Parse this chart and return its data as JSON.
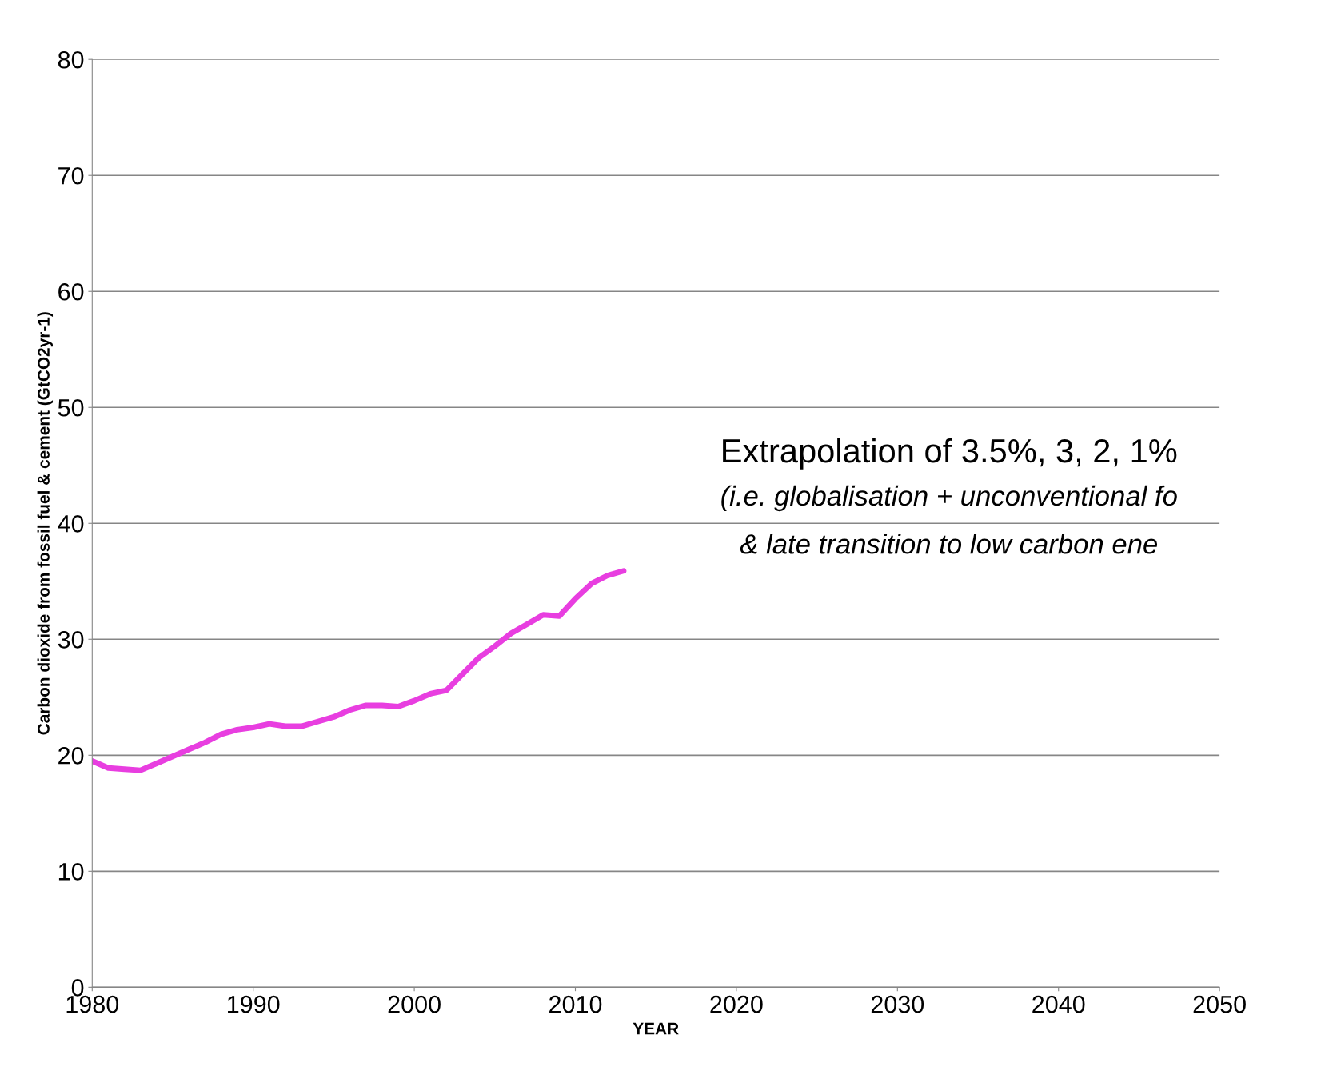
{
  "chart_data": {
    "type": "line",
    "xlabel": "YEAR",
    "ylabel": "Carbon dioxide from fossil fuel & cement (GtCO2yr-1)",
    "x": [
      1980,
      1981,
      1982,
      1983,
      1984,
      1985,
      1986,
      1987,
      1988,
      1989,
      1990,
      1991,
      1992,
      1993,
      1994,
      1995,
      1996,
      1997,
      1998,
      1999,
      2000,
      2001,
      2002,
      2003,
      2004,
      2005,
      2006,
      2007,
      2008,
      2009,
      2010,
      2011,
      2012,
      2013
    ],
    "series": [
      {
        "color": "#e83ee0",
        "values": [
          19.5,
          18.9,
          18.8,
          18.7,
          19.3,
          19.9,
          20.5,
          21.1,
          21.8,
          22.2,
          22.4,
          22.7,
          22.5,
          22.5,
          22.9,
          23.3,
          23.9,
          24.3,
          24.3,
          24.2,
          24.7,
          25.3,
          25.6,
          27.0,
          28.4,
          29.4,
          30.5,
          31.3,
          32.1,
          32.0,
          33.5,
          34.8,
          35.5,
          35.9
        ]
      }
    ],
    "xlim": [
      1980,
      2050
    ],
    "xticks": [
      1980,
      1990,
      2000,
      2010,
      2020,
      2030,
      2040,
      2050
    ],
    "ylim": [
      0,
      80
    ],
    "yticks": [
      0,
      10,
      20,
      30,
      40,
      50,
      60,
      70,
      80
    ],
    "grid": "y",
    "legend": false,
    "marker": "none",
    "line_style": "solid",
    "annotations": [
      "Extrapolation of 3.5%, 3, 2, 1%",
      "(i.e. globalisation + unconventional fo",
      "& late transition to low carbon ene"
    ]
  }
}
